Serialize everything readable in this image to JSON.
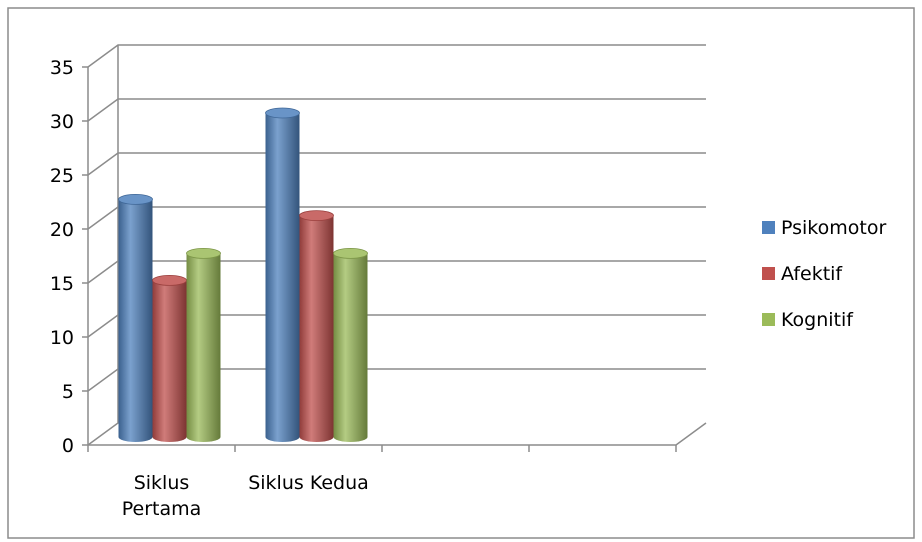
{
  "chart_data": {
    "type": "bar",
    "style": "3d-cylinder",
    "categories": [
      "Siklus Pertama",
      "Siklus Kedua",
      "",
      ""
    ],
    "category_lines": [
      [
        "Siklus",
        "Pertama"
      ],
      [
        "Siklus Kedua"
      ],
      [
        ""
      ],
      [
        ""
      ]
    ],
    "series": [
      {
        "name": "Psikomotor",
        "values": [
          22,
          30,
          null,
          null
        ],
        "color": "#4F81BD"
      },
      {
        "name": "Afektif",
        "values": [
          14.5,
          20.5,
          null,
          null
        ],
        "color": "#C0504D"
      },
      {
        "name": "Kognitif",
        "values": [
          17,
          17,
          null,
          null
        ],
        "color": "#9BBB59"
      }
    ],
    "y_ticks": [
      0,
      5,
      10,
      15,
      20,
      25,
      30,
      35
    ],
    "ylim": [
      0,
      35
    ],
    "title": "",
    "xlabel": "",
    "ylabel": "",
    "grid": true,
    "legend_position": "right"
  }
}
